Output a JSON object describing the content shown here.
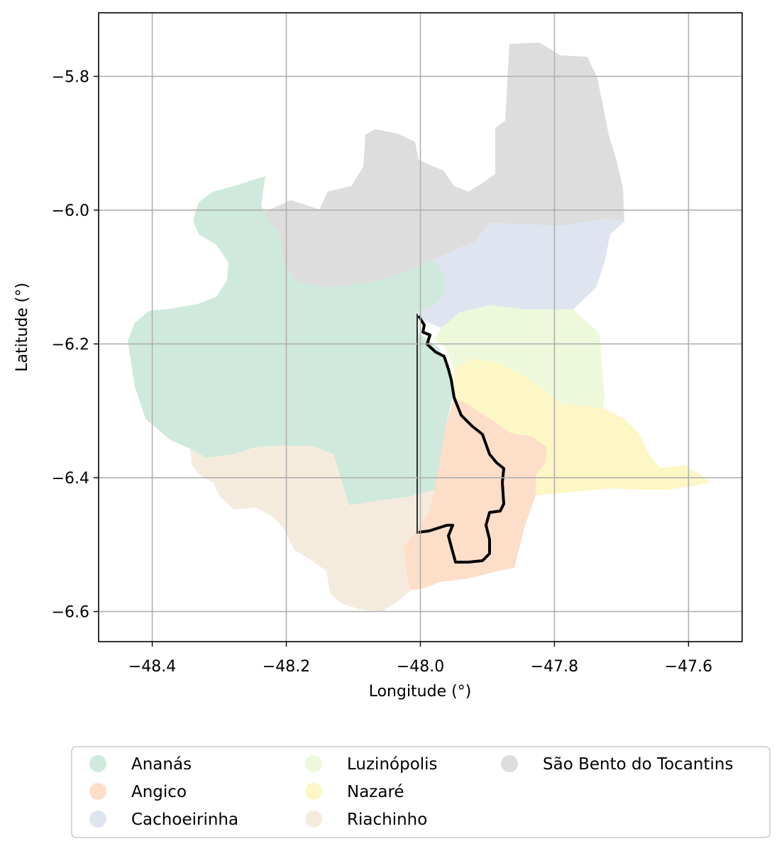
{
  "chart_data": {
    "type": "map",
    "xlabel": "Longitude (°)",
    "ylabel": "Latitude (°)",
    "xlim": [
      -48.48,
      -47.52
    ],
    "ylim": [
      -6.645,
      -5.705
    ],
    "grid": true,
    "x_ticks": [
      -48.4,
      -48.2,
      -48.0,
      -47.8,
      -47.6
    ],
    "x_tick_labels": [
      "−48.4",
      "−48.2",
      "−48.0",
      "−47.8",
      "−47.6"
    ],
    "y_ticks": [
      -5.8,
      -6.0,
      -6.2,
      -6.4,
      -6.6
    ],
    "y_tick_labels": [
      "−5.8",
      "−6.0",
      "−6.2",
      "−6.4",
      "−6.6"
    ],
    "legend_position": "bottom-outside",
    "regions": [
      {
        "name": "Ananás",
        "color": "#cfeadc"
      },
      {
        "name": "Angico",
        "color": "#fddec9"
      },
      {
        "name": "Cachoeirinha",
        "color": "#dfe4f1"
      },
      {
        "name": "Luzinópolis",
        "color": "#eef8da"
      },
      {
        "name": "Nazaré",
        "color": "#fdf6c5"
      },
      {
        "name": "Riachinho",
        "color": "#f5ebdd"
      },
      {
        "name": "São Bento do Tocantins",
        "color": "#dddddd"
      }
    ],
    "highlight_outline_color": "#000000"
  }
}
